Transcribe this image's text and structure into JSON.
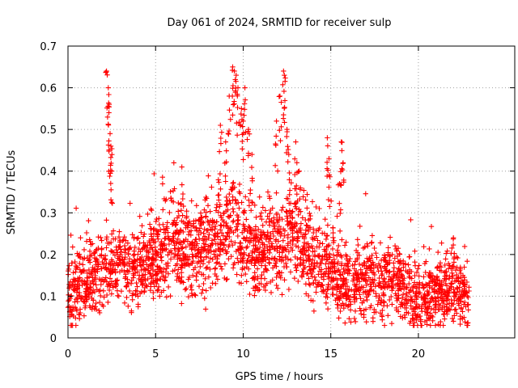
{
  "chart_data": {
    "type": "scatter",
    "title": "Day 061 of 2024, SRMTID for receiver sulp",
    "xlabel": "GPS time / hours",
    "ylabel": "SRMTID / TECUs",
    "xlim": [
      0,
      25.5
    ],
    "ylim": [
      0,
      0.7
    ],
    "xticks": [
      0,
      5,
      10,
      15,
      20
    ],
    "yticks": [
      0,
      0.1,
      0.2,
      0.3,
      0.4,
      0.5,
      0.6,
      0.7
    ],
    "xtick_labels": [
      "0",
      "5",
      "10",
      "15",
      "20"
    ],
    "ytick_labels": [
      "0",
      "0.1",
      "0.2",
      "0.3",
      "0.4",
      "0.5",
      "0.6",
      "0.7"
    ],
    "grid": true,
    "marker": "+",
    "color": "#ff0000",
    "series": [
      {
        "name": "sulp",
        "x_range": [
          0,
          22.9
        ],
        "trend": {
          "x": [
            0,
            1,
            2,
            3,
            4,
            5,
            6,
            7,
            8,
            9,
            9.5,
            10,
            11,
            12,
            13,
            14,
            15,
            16,
            17,
            18,
            19,
            20,
            21,
            22,
            22.9
          ],
          "y": [
            0.1,
            0.13,
            0.16,
            0.18,
            0.17,
            0.2,
            0.23,
            0.2,
            0.22,
            0.26,
            0.28,
            0.24,
            0.21,
            0.23,
            0.24,
            0.2,
            0.16,
            0.13,
            0.13,
            0.14,
            0.13,
            0.1,
            0.11,
            0.12,
            0.09
          ]
        },
        "spikes": [
          {
            "x": 2.2,
            "y": 0.64
          },
          {
            "x": 2.3,
            "y": 0.6
          },
          {
            "x": 2.35,
            "y": 0.56
          },
          {
            "x": 2.4,
            "y": 0.49
          },
          {
            "x": 2.45,
            "y": 0.46
          },
          {
            "x": 2.5,
            "y": 0.4
          },
          {
            "x": 6.5,
            "y": 0.41
          },
          {
            "x": 8.7,
            "y": 0.51
          },
          {
            "x": 9.0,
            "y": 0.47
          },
          {
            "x": 9.2,
            "y": 0.58
          },
          {
            "x": 9.4,
            "y": 0.65
          },
          {
            "x": 9.5,
            "y": 0.64
          },
          {
            "x": 9.6,
            "y": 0.63
          },
          {
            "x": 9.7,
            "y": 0.6
          },
          {
            "x": 9.9,
            "y": 0.55
          },
          {
            "x": 10.0,
            "y": 0.52
          },
          {
            "x": 10.1,
            "y": 0.6
          },
          {
            "x": 10.3,
            "y": 0.5
          },
          {
            "x": 10.5,
            "y": 0.44
          },
          {
            "x": 11.9,
            "y": 0.52
          },
          {
            "x": 12.1,
            "y": 0.58
          },
          {
            "x": 12.3,
            "y": 0.64
          },
          {
            "x": 12.35,
            "y": 0.63
          },
          {
            "x": 12.5,
            "y": 0.5
          },
          {
            "x": 12.6,
            "y": 0.44
          },
          {
            "x": 13.0,
            "y": 0.47
          },
          {
            "x": 13.2,
            "y": 0.4
          },
          {
            "x": 14.8,
            "y": 0.48
          },
          {
            "x": 14.9,
            "y": 0.43
          },
          {
            "x": 15.6,
            "y": 0.47
          },
          {
            "x": 15.7,
            "y": 0.42
          },
          {
            "x": 15.5,
            "y": 0.37
          },
          {
            "x": 22.0,
            "y": 0.24
          }
        ],
        "y_min_observed": 0.03,
        "y_max_observed": 0.65,
        "approx_point_count": 2600
      }
    ]
  }
}
